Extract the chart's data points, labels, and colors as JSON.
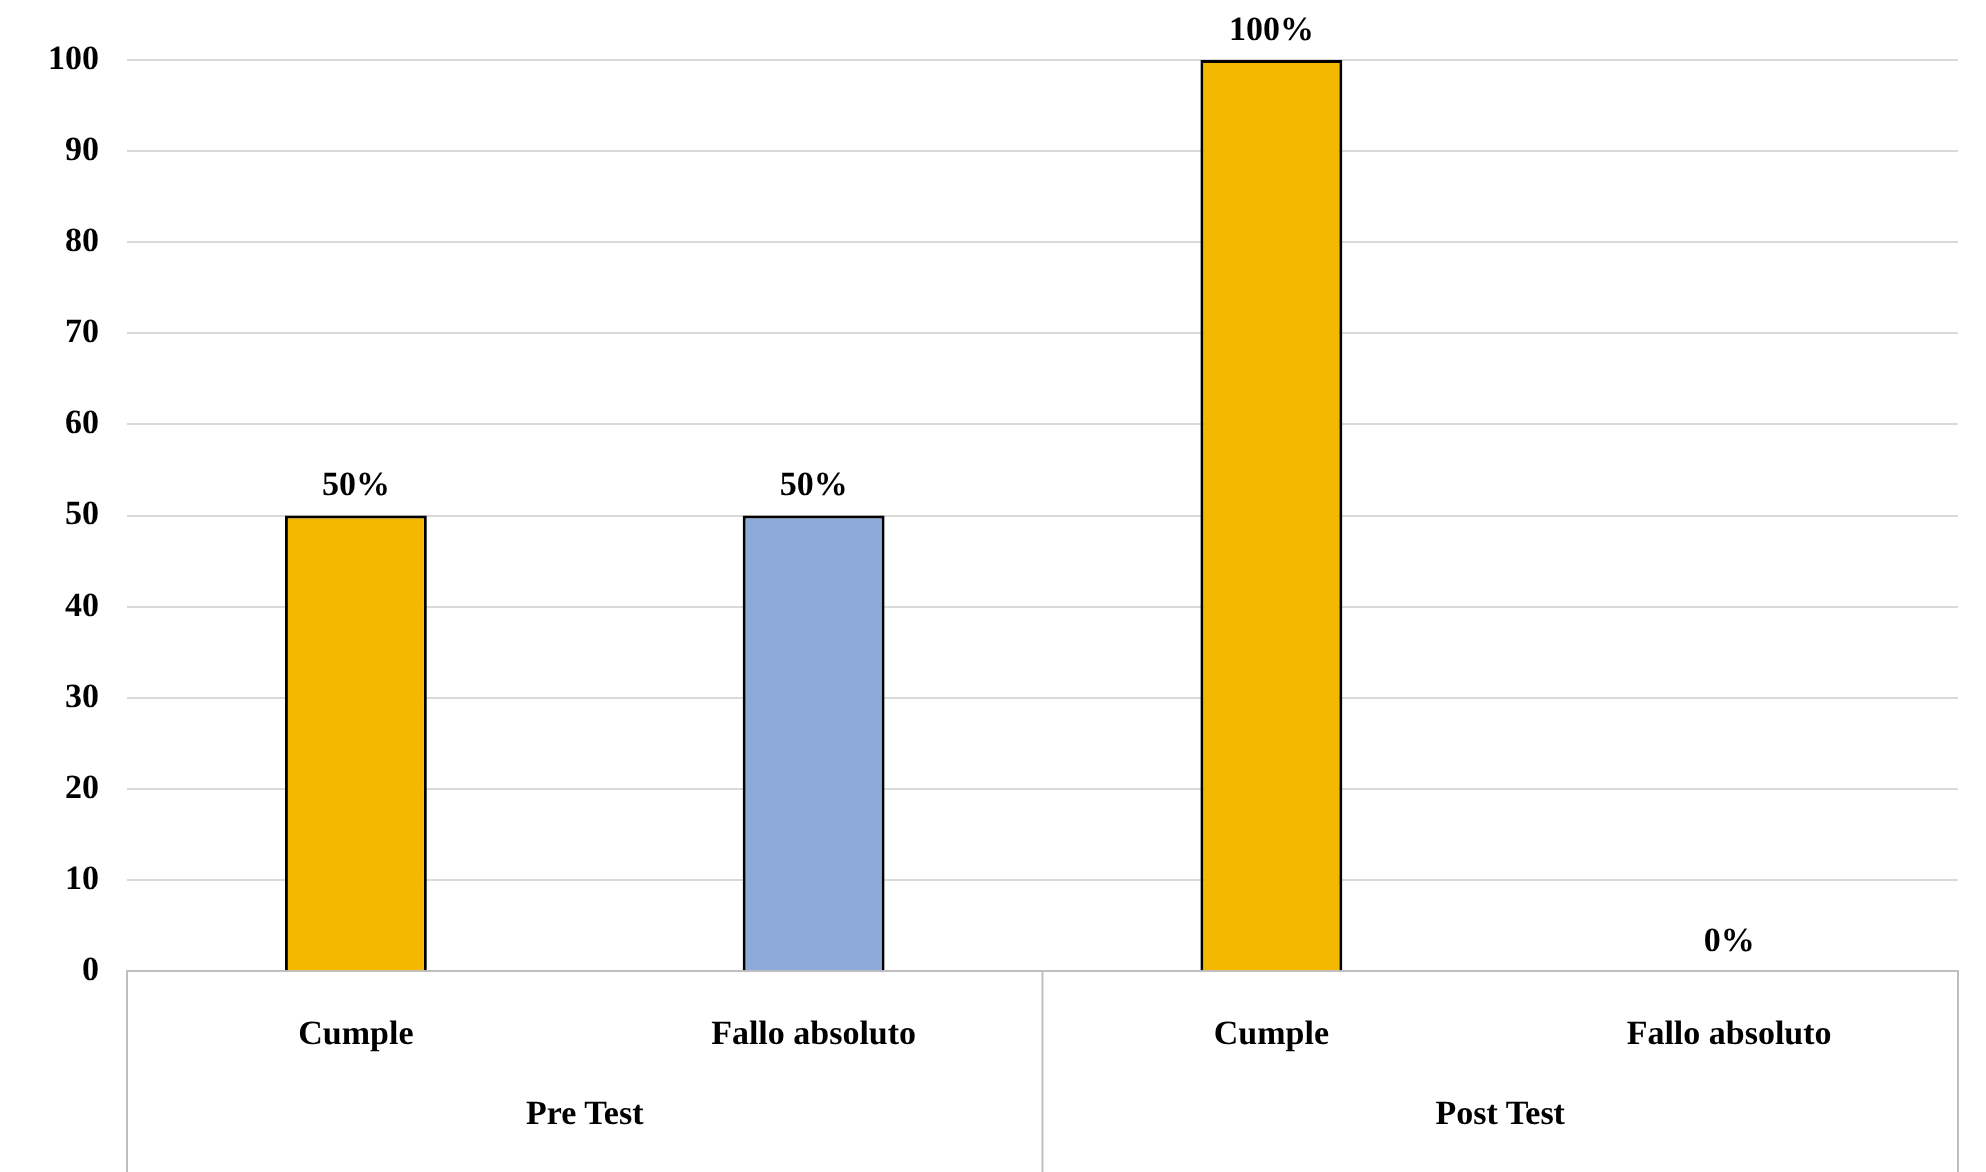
{
  "chart_data": {
    "type": "bar",
    "categories": [
      "Cumple",
      "Fallo absoluto",
      "Cumple",
      "Fallo absoluto"
    ],
    "values": [
      50,
      50,
      100,
      0
    ],
    "colors": [
      "#f5b800",
      "#8eaadb",
      "#f5b800",
      "#8eaadb"
    ],
    "value_labels": [
      "50%",
      "50%",
      "100%",
      "0%"
    ],
    "annotations": [
      "Pre Test",
      "Post Test"
    ],
    "ylim": [
      0,
      100
    ],
    "yticks": [
      0,
      10,
      20,
      30,
      40,
      50,
      60,
      70,
      80,
      90,
      100
    ],
    "grid": "y"
  }
}
